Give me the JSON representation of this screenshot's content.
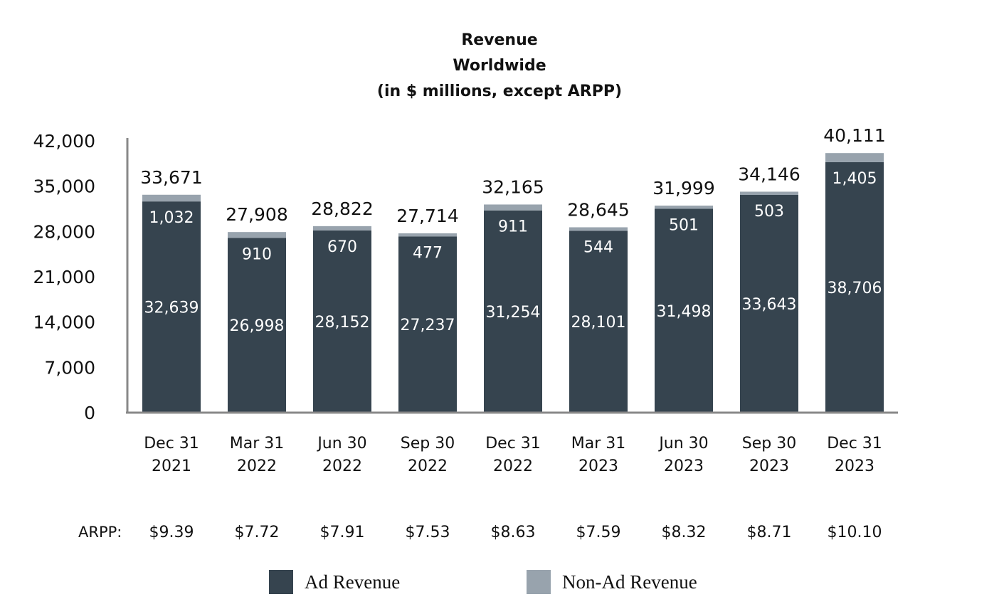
{
  "chart_data": {
    "type": "bar",
    "stacked": true,
    "title_lines": [
      "Revenue",
      "Worldwide",
      "(in $ millions, except ARPP)"
    ],
    "categories": [
      [
        "Dec 31",
        "2021"
      ],
      [
        "Mar 31",
        "2022"
      ],
      [
        "Jun 30",
        "2022"
      ],
      [
        "Sep 30",
        "2022"
      ],
      [
        "Dec 31",
        "2022"
      ],
      [
        "Mar 31",
        "2023"
      ],
      [
        "Jun 30",
        "2023"
      ],
      [
        "Sep 30",
        "2023"
      ],
      [
        "Dec 31",
        "2023"
      ]
    ],
    "series": [
      {
        "name": "Ad Revenue",
        "color": "#36444f",
        "values": [
          32639,
          26998,
          28152,
          27237,
          31254,
          28101,
          31498,
          33643,
          38706
        ]
      },
      {
        "name": "Non-Ad Revenue",
        "color": "#98a3ad",
        "values": [
          1032,
          910,
          670,
          477,
          911,
          544,
          501,
          503,
          1405
        ]
      }
    ],
    "totals": [
      33671,
      27908,
      28822,
      27714,
      32165,
      28645,
      31999,
      34146,
      40111
    ],
    "ylim": [
      0,
      42000
    ],
    "yticks": [
      0,
      7000,
      14000,
      21000,
      28000,
      35000,
      42000
    ],
    "arpp_label": "ARPP:",
    "arpp": [
      "$9.39",
      "$7.72",
      "$7.91",
      "$7.53",
      "$8.63",
      "$7.59",
      "$8.32",
      "$8.71",
      "$10.10"
    ],
    "legend_position": "bottom"
  }
}
